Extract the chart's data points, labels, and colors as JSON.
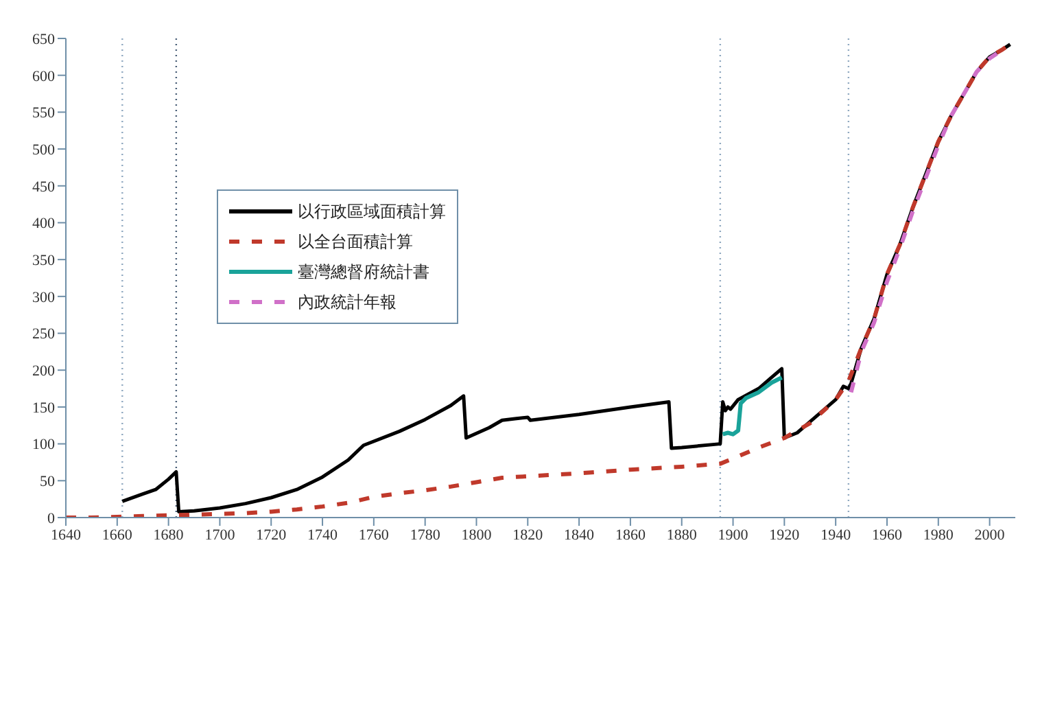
{
  "chart_data": {
    "type": "line",
    "xlim": [
      1640,
      2010
    ],
    "xticks": [
      1640,
      1660,
      1680,
      1700,
      1720,
      1740,
      1760,
      1780,
      1800,
      1820,
      1840,
      1860,
      1880,
      1900,
      1920,
      1940,
      1960,
      1980,
      2000
    ],
    "ylim": [
      0,
      650
    ],
    "yticks": [
      0,
      50,
      100,
      150,
      200,
      250,
      300,
      350,
      400,
      450,
      500,
      550,
      600,
      650
    ],
    "grid": false,
    "legend": "top left",
    "marker": "none",
    "ref_lines": [
      {
        "axis": "x",
        "value": 1662,
        "color": "#8fa8c0",
        "line_style": "dotted"
      },
      {
        "axis": "x",
        "value": 1683,
        "color": "#4a5f78",
        "line_style": "dotted"
      },
      {
        "axis": "x",
        "value": 1895,
        "color": "#8fa8c0",
        "line_style": "dotted"
      },
      {
        "axis": "x",
        "value": 1945,
        "color": "#8fa8c0",
        "line_style": "dotted"
      }
    ],
    "series": [
      {
        "name": "以行政區域面積計算",
        "color": "#000000",
        "line_style": "solid",
        "x": [
          1662,
          1670,
          1675,
          1680,
          1683,
          1684,
          1690,
          1700,
          1710,
          1720,
          1730,
          1740,
          1750,
          1756,
          1770,
          1780,
          1790,
          1795,
          1796,
          1805,
          1810,
          1815,
          1820,
          1821,
          1840,
          1860,
          1875,
          1876,
          1880,
          1895,
          1896,
          1897,
          1898,
          1899,
          1902,
          1910,
          1915,
          1919,
          1920,
          1925,
          1930,
          1940,
          1943,
          1945,
          1946,
          1950,
          1955,
          1960,
          1965,
          1970,
          1975,
          1980,
          1985,
          1990,
          1995,
          2000,
          2005,
          2008
        ],
        "values": [
          22,
          32,
          38,
          52,
          62,
          8,
          9,
          13,
          19,
          27,
          38,
          55,
          78,
          98,
          117,
          133,
          152,
          165,
          108,
          122,
          132,
          134,
          136,
          132,
          140,
          150,
          157,
          94,
          95,
          100,
          157,
          145,
          150,
          147,
          160,
          175,
          190,
          202,
          108,
          115,
          130,
          160,
          178,
          175,
          182,
          230,
          270,
          330,
          370,
          420,
          465,
          510,
          545,
          575,
          605,
          625,
          635,
          642
        ]
      },
      {
        "name": "以全台面積計算",
        "color": "#c0392b",
        "line_style": "dashed",
        "x": [
          1640,
          1650,
          1660,
          1670,
          1680,
          1690,
          1700,
          1710,
          1720,
          1730,
          1740,
          1750,
          1760,
          1770,
          1780,
          1790,
          1800,
          1810,
          1820,
          1840,
          1860,
          1880,
          1895,
          1900,
          1910,
          1920,
          1930,
          1940,
          1945,
          1950,
          1955,
          1960,
          1965,
          1970,
          1975,
          1980,
          1985,
          1990,
          1995,
          2000,
          2005,
          2008
        ],
        "values": [
          0,
          0,
          1,
          2,
          3,
          4,
          5,
          6,
          8,
          11,
          15,
          20,
          28,
          33,
          37,
          42,
          48,
          54,
          56,
          60,
          65,
          69,
          73,
          80,
          95,
          108,
          128,
          160,
          185,
          230,
          270,
          330,
          370,
          420,
          465,
          510,
          545,
          575,
          605,
          625,
          635,
          642
        ]
      },
      {
        "name": "臺灣總督府統計書",
        "color": "#1aa39a",
        "line_style": "solid",
        "x": [
          1896,
          1898,
          1900,
          1902,
          1903,
          1905,
          1910,
          1915,
          1919
        ],
        "values": [
          113,
          115,
          113,
          118,
          155,
          162,
          170,
          183,
          190
        ]
      },
      {
        "name": "內政統計年報",
        "color": "#d070c8",
        "line_style": "dashed",
        "x": [
          1946,
          1950,
          1955,
          1960,
          1965,
          1970,
          1975,
          1980,
          1985,
          1990,
          1995,
          2000,
          2003
        ],
        "values": [
          170,
          225,
          265,
          320,
          365,
          415,
          460,
          505,
          545,
          575,
          605,
          623,
          630
        ]
      }
    ]
  }
}
